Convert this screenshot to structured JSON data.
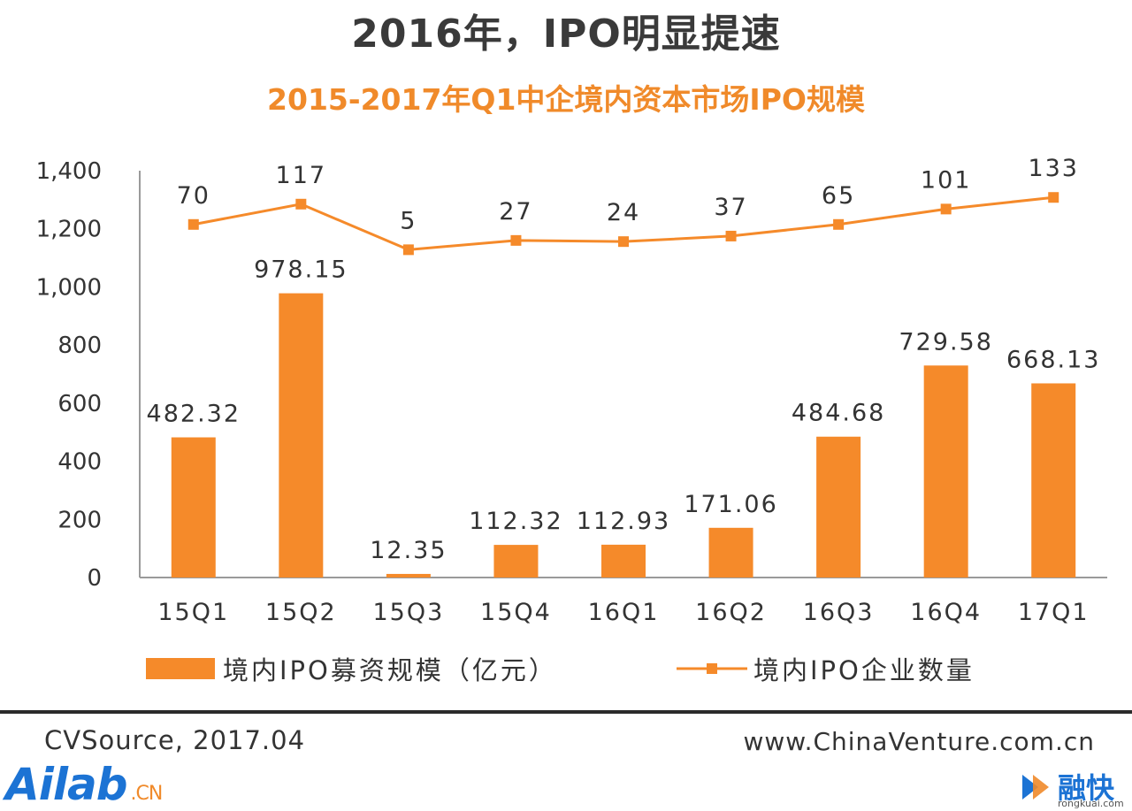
{
  "headline": "2016年，IPO明显提速",
  "chart_data": {
    "type": "bar",
    "title": "2015-2017年Q1中企境内资本市场IPO规模",
    "categories": [
      "15Q1",
      "15Q2",
      "15Q3",
      "15Q4",
      "16Q1",
      "16Q2",
      "16Q3",
      "16Q4",
      "17Q1"
    ],
    "y_ticks": [
      "0",
      "200",
      "400",
      "600",
      "800",
      "1,000",
      "1,200",
      "1,400"
    ],
    "ylim": [
      0,
      1400
    ],
    "series": [
      {
        "name": "境内IPO募资规模（亿元）",
        "type": "bar",
        "color": "#f58a2a",
        "values": [
          482.32,
          978.15,
          12.35,
          112.32,
          112.93,
          171.06,
          484.68,
          729.58,
          668.13
        ],
        "labels": [
          "482.32",
          "978.15",
          "12.35",
          "112.32",
          "112.93",
          "171.06",
          "484.68",
          "729.58",
          "668.13"
        ]
      },
      {
        "name": "境内IPO企业数量",
        "type": "line",
        "color": "#f58a2a",
        "values": [
          70,
          117,
          5,
          27,
          24,
          37,
          65,
          101,
          133
        ],
        "labels": [
          "70",
          "117",
          "5",
          "27",
          "24",
          "37",
          "65",
          "101",
          "133"
        ],
        "plotted_at": [
          1215,
          1285,
          1128,
          1160,
          1156,
          1175,
          1215,
          1268,
          1308
        ]
      }
    ],
    "legend_position": "bottom",
    "grid": false
  },
  "footer": {
    "source": "CVSource, 2017.04",
    "site": "www.ChinaVenture.com.cn"
  },
  "logos": {
    "ailab_text": "Ailab",
    "ailab_suffix": ".CN",
    "rongkuai_name": "融快",
    "rongkuai_url": "rongkuai.com"
  },
  "colors": {
    "accent": "#f58a2a",
    "title_orange": "#f08a2a",
    "text": "#333333"
  }
}
